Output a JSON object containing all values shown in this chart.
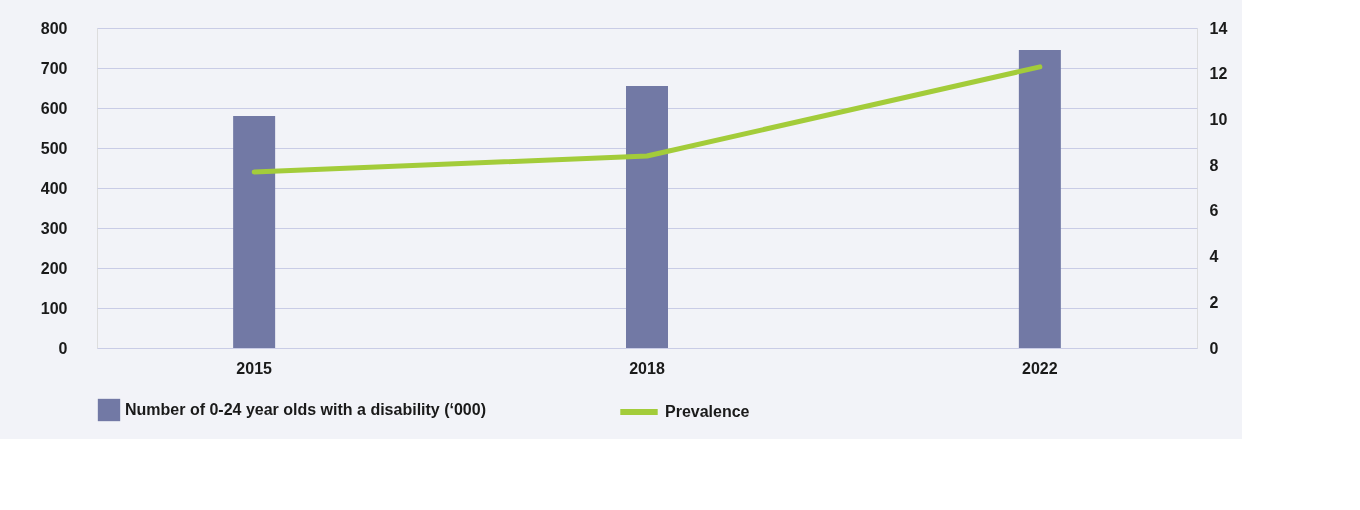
{
  "chart_data": {
    "type": "bar",
    "categories": [
      "2015",
      "2018",
      "2022"
    ],
    "series": [
      {
        "name": "Number of 0-24 year olds with a disability (‘000)",
        "color": "#7279a5",
        "values": [
          580,
          655,
          745
        ]
      },
      {
        "name": "Prevalence",
        "type": "line",
        "axis": "y2",
        "color": "#a3cc3a",
        "values": [
          7.7,
          8.4,
          12.3
        ]
      }
    ],
    "ylim": [
      0,
      800
    ],
    "yticks": [
      0,
      100,
      200,
      300,
      400,
      500,
      600,
      700,
      800
    ],
    "y2lim": [
      0,
      14
    ],
    "y2ticks": [
      0,
      2,
      4,
      6,
      8,
      10,
      12,
      14
    ],
    "grid": "y",
    "legend": "bottom left",
    "marker": "none",
    "line_style": "solid"
  }
}
